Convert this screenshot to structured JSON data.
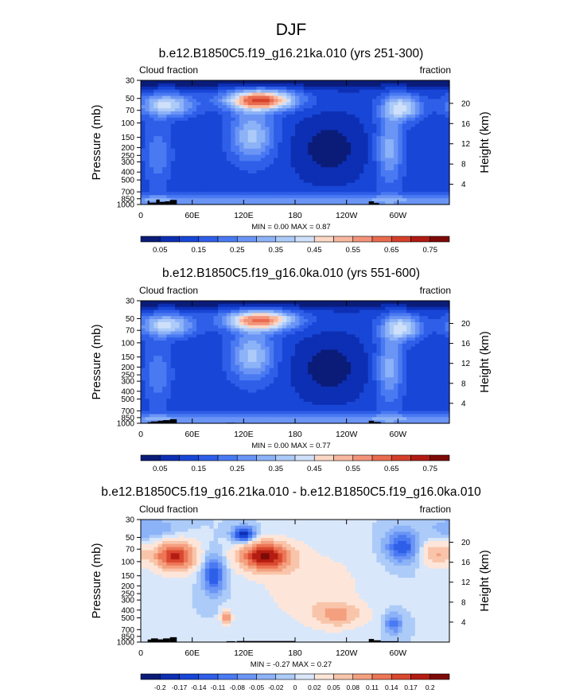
{
  "figure": {
    "title": "DJF"
  },
  "colors": {
    "abs_scale": [
      "#0a1c78",
      "#0d2fb4",
      "#1846d6",
      "#2f5fe8",
      "#4a7af2",
      "#6b95f5",
      "#8cb2f7",
      "#adcbf8",
      "#cfe0fa",
      "#fbd7c6",
      "#f8b89f",
      "#f3937a",
      "#e96b4f",
      "#d4402b",
      "#b01b13",
      "#7d0a08"
    ],
    "diff_scale": [
      "#0a1c78",
      "#0d2fb4",
      "#1846d6",
      "#2f5fe8",
      "#4a7af2",
      "#6b95f5",
      "#8cb2f7",
      "#adcbf8",
      "#d9e7fb",
      "#fde6d9",
      "#f9c5aa",
      "#f4a07f",
      "#ec7656",
      "#d9482f",
      "#b41d12",
      "#7d0a08"
    ],
    "land": "#000000"
  },
  "chart_data": [
    {
      "type": "heatmap",
      "title": "b.e12.B1850C5.f19_g16.21ka.010 (yrs 251-300)",
      "left_label": "Cloud fraction",
      "right_label": "fraction",
      "ylabel": "Pressure (mb)",
      "ylabel_right": "Height (km)",
      "xticks": [
        "0",
        "60E",
        "120E",
        "180",
        "120W",
        "60W"
      ],
      "xtick_lon": [
        0,
        60,
        120,
        180,
        240,
        300
      ],
      "xlim": [
        0,
        360
      ],
      "yticks": [
        "30",
        "50",
        "70",
        "100",
        "150",
        "200",
        "250",
        "300",
        "400",
        "500",
        "700",
        "850",
        "1000"
      ],
      "ytick_p": [
        30,
        50,
        70,
        100,
        150,
        200,
        250,
        300,
        400,
        500,
        700,
        850,
        1000
      ],
      "ylim": [
        30,
        1000
      ],
      "yscale": "log",
      "right_ticks": [
        "20",
        "16",
        "12",
        "8",
        "4"
      ],
      "right_km": [
        20,
        16,
        12,
        8,
        4
      ],
      "min_max": "MIN =   0.00  MAX =   0.87",
      "colorbar_labels": [
        "0.05",
        "0.15",
        "0.25",
        "0.35",
        "0.45",
        "0.55",
        "0.65",
        "0.75"
      ],
      "levels": [
        0.05,
        0.1,
        0.15,
        0.2,
        0.25,
        0.3,
        0.35,
        0.4,
        0.45,
        0.5,
        0.55,
        0.6,
        0.65,
        0.7,
        0.75
      ],
      "land_bars": [
        [
          8,
          10,
          900
        ],
        [
          10,
          18,
          950
        ],
        [
          18,
          22,
          870
        ],
        [
          22,
          28,
          930
        ],
        [
          28,
          34,
          915
        ],
        [
          34,
          42,
          880
        ],
        [
          266,
          272,
          915
        ],
        [
          272,
          278,
          960
        ]
      ]
    },
    {
      "type": "heatmap",
      "title": "b.e12.B1850C5.f19_g16.0ka.010 (yrs 551-600)",
      "left_label": "Cloud fraction",
      "right_label": "fraction",
      "ylabel": "Pressure (mb)",
      "ylabel_right": "Height (km)",
      "xticks": [
        "0",
        "60E",
        "120E",
        "180",
        "120W",
        "60W"
      ],
      "xtick_lon": [
        0,
        60,
        120,
        180,
        240,
        300
      ],
      "xlim": [
        0,
        360
      ],
      "yticks": [
        "30",
        "50",
        "70",
        "100",
        "150",
        "200",
        "250",
        "300",
        "400",
        "500",
        "700",
        "850",
        "1000"
      ],
      "ytick_p": [
        30,
        50,
        70,
        100,
        150,
        200,
        250,
        300,
        400,
        500,
        700,
        850,
        1000
      ],
      "ylim": [
        30,
        1000
      ],
      "yscale": "log",
      "right_ticks": [
        "20",
        "16",
        "12",
        "8",
        "4"
      ],
      "right_km": [
        20,
        16,
        12,
        8,
        4
      ],
      "min_max": "MIN =   0.00  MAX =   0.77",
      "colorbar_labels": [
        "0.05",
        "0.15",
        "0.25",
        "0.35",
        "0.45",
        "0.55",
        "0.65",
        "0.75"
      ],
      "levels": [
        0.05,
        0.1,
        0.15,
        0.2,
        0.25,
        0.3,
        0.35,
        0.4,
        0.45,
        0.5,
        0.55,
        0.6,
        0.65,
        0.7,
        0.75
      ],
      "land_bars": [
        [
          8,
          12,
          970
        ],
        [
          12,
          20,
          950
        ],
        [
          20,
          26,
          930
        ],
        [
          26,
          34,
          915
        ],
        [
          34,
          42,
          890
        ],
        [
          100,
          110,
          985
        ],
        [
          150,
          180,
          988
        ],
        [
          266,
          272,
          930
        ],
        [
          272,
          280,
          965
        ],
        [
          280,
          300,
          990
        ]
      ]
    },
    {
      "type": "heatmap",
      "title": "b.e12.B1850C5.f19_g16.21ka.010 - b.e12.B1850C5.f19_g16.0ka.010",
      "left_label": "Cloud fraction",
      "right_label": "fraction",
      "ylabel": "Pressure (mb)",
      "ylabel_right": "Height (km)",
      "xticks": [
        "0",
        "60E",
        "120E",
        "180",
        "120W",
        "60W"
      ],
      "xtick_lon": [
        0,
        60,
        120,
        180,
        240,
        300
      ],
      "xlim": [
        0,
        360
      ],
      "yticks": [
        "30",
        "50",
        "70",
        "100",
        "150",
        "200",
        "250",
        "300",
        "400",
        "500",
        "700",
        "850",
        "1000"
      ],
      "ytick_p": [
        30,
        50,
        70,
        100,
        150,
        200,
        250,
        300,
        400,
        500,
        700,
        850,
        1000
      ],
      "ylim": [
        30,
        1000
      ],
      "yscale": "log",
      "right_ticks": [
        "20",
        "16",
        "12",
        "8",
        "4"
      ],
      "right_km": [
        20,
        16,
        12,
        8,
        4
      ],
      "min_max": "MIN =  -0.27  MAX =   0.27",
      "colorbar_labels": [
        "-0.2",
        "-0.17",
        "-0.14",
        "-0.11",
        "-0.08",
        "-0.05",
        "-0.02",
        "0",
        "0.02",
        "0.05",
        "0.08",
        "0.11",
        "0.14",
        "0.17",
        "0.2"
      ],
      "levels": [
        -0.2,
        -0.17,
        -0.14,
        -0.11,
        -0.08,
        -0.05,
        -0.02,
        0,
        0.02,
        0.05,
        0.08,
        0.11,
        0.14,
        0.17,
        0.2
      ],
      "land_bars": [
        [
          8,
          12,
          930
        ],
        [
          12,
          20,
          900
        ],
        [
          20,
          26,
          925
        ],
        [
          26,
          34,
          900
        ],
        [
          34,
          42,
          870
        ],
        [
          100,
          110,
          975
        ],
        [
          112,
          180,
          970
        ],
        [
          266,
          272,
          915
        ],
        [
          272,
          280,
          950
        ],
        [
          280,
          300,
          975
        ]
      ]
    }
  ]
}
